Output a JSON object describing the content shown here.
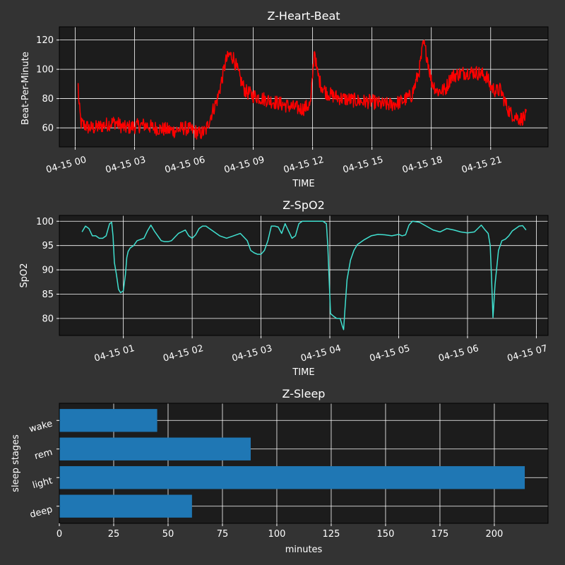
{
  "colors": {
    "figure_bg": "#333333",
    "axes_bg": "#1c1c1c",
    "text": "#ffffff",
    "grid": "#ffffff",
    "heart_line": "#ff0000",
    "spo2_line": "#40e0d0",
    "bar": "#1f77b4"
  },
  "chart_data": [
    {
      "type": "line",
      "title": "Z-Heart-Beat",
      "xlabel": "TIME",
      "ylabel": "Beat-Per-Minute",
      "x_unit": "hours from 04-15 00:00",
      "xlim": [
        -0.8,
        23.9
      ],
      "ylim": [
        47,
        129
      ],
      "xticks": [
        0,
        3,
        6,
        9,
        12,
        15,
        18,
        21
      ],
      "xtick_labels": [
        "04-15 00",
        "04-15 03",
        "04-15 06",
        "04-15 09",
        "04-15 12",
        "04-15 15",
        "04-15 18",
        "04-15 21"
      ],
      "yticks": [
        60,
        80,
        100,
        120
      ],
      "ytick_labels": [
        "60",
        "80",
        "100",
        "120"
      ],
      "grid": true,
      "series": [
        {
          "name": "heart rate",
          "noise": 5,
          "x": [
            0.15,
            0.2,
            0.3,
            0.45,
            0.7,
            1.0,
            1.5,
            2.0,
            2.5,
            3.0,
            3.5,
            4.0,
            4.5,
            5.0,
            5.5,
            6.0,
            6.3,
            6.6,
            6.9,
            7.2,
            7.4,
            7.6,
            7.8,
            8.0,
            8.3,
            8.6,
            9.0,
            9.5,
            10.0,
            10.5,
            11.0,
            11.5,
            11.9,
            12.1,
            12.2,
            12.4,
            12.7,
            13.0,
            13.5,
            14.0,
            14.5,
            15.0,
            15.5,
            16.0,
            16.5,
            17.0,
            17.2,
            17.4,
            17.6,
            17.8,
            18.0,
            18.3,
            18.7,
            19.0,
            19.4,
            19.8,
            20.2,
            20.5,
            20.8,
            21.0,
            21.3,
            21.5,
            21.8,
            22.0,
            22.5,
            22.8
          ],
          "values": [
            89,
            75,
            63,
            62,
            60,
            60,
            62,
            64,
            60,
            61,
            62,
            60,
            59,
            58,
            60,
            58,
            56,
            58,
            70,
            80,
            92,
            105,
            110,
            108,
            95,
            85,
            82,
            80,
            78,
            76,
            74,
            73,
            76,
            115,
            100,
            90,
            84,
            82,
            80,
            79,
            78,
            78,
            76,
            76,
            78,
            82,
            90,
            100,
            118,
            108,
            92,
            85,
            86,
            95,
            97,
            98,
            98,
            97,
            95,
            88,
            85,
            86,
            75,
            70,
            66,
            68
          ]
        }
      ]
    },
    {
      "type": "line",
      "title": "Z-SpO2",
      "xlabel": "TIME",
      "ylabel": "SpO2",
      "x_unit": "hours from 04-15 00:00",
      "xlim": [
        0.07,
        7.17
      ],
      "ylim": [
        76.5,
        101.2
      ],
      "xticks": [
        1,
        2,
        3,
        4,
        5,
        6,
        7
      ],
      "xtick_labels": [
        "04-15 01",
        "04-15 02",
        "04-15 03",
        "04-15 04",
        "04-15 05",
        "04-15 06",
        "04-15 07"
      ],
      "yticks": [
        80,
        85,
        90,
        95,
        100
      ],
      "ytick_labels": [
        "80",
        "85",
        "90",
        "95",
        "100"
      ],
      "grid": true,
      "series": [
        {
          "name": "SpO2",
          "x": [
            0.4,
            0.45,
            0.5,
            0.55,
            0.6,
            0.65,
            0.7,
            0.75,
            0.8,
            0.83,
            0.85,
            0.87,
            0.9,
            0.93,
            0.96,
            1.0,
            1.03,
            1.05,
            1.07,
            1.1,
            1.15,
            1.2,
            1.3,
            1.35,
            1.4,
            1.45,
            1.5,
            1.55,
            1.6,
            1.65,
            1.7,
            1.8,
            1.9,
            1.95,
            2.0,
            2.05,
            2.1,
            2.15,
            2.2,
            2.25,
            2.3,
            2.4,
            2.5,
            2.6,
            2.7,
            2.8,
            2.85,
            2.9,
            2.95,
            3.0,
            3.05,
            3.1,
            3.15,
            3.2,
            3.25,
            3.3,
            3.35,
            3.4,
            3.45,
            3.5,
            3.55,
            3.6,
            3.65,
            3.7,
            3.8,
            3.9,
            3.95,
            3.97,
            3.99,
            4.01,
            4.05,
            4.1,
            4.15,
            4.18,
            4.2,
            4.22,
            4.25,
            4.3,
            4.35,
            4.4,
            4.5,
            4.6,
            4.7,
            4.8,
            4.9,
            5.0,
            5.05,
            5.1,
            5.15,
            5.2,
            5.3,
            5.4,
            5.5,
            5.6,
            5.7,
            5.8,
            5.9,
            6.0,
            6.1,
            6.2,
            6.25,
            6.3,
            6.33,
            6.35,
            6.37,
            6.4,
            6.45,
            6.5,
            6.55,
            6.6,
            6.65,
            6.7,
            6.75,
            6.8,
            6.85
          ],
          "values": [
            97.8,
            99.0,
            98.5,
            97.0,
            97.0,
            96.5,
            96.5,
            97.0,
            99.5,
            99.8,
            97.0,
            91.5,
            89.0,
            86.0,
            85.3,
            85.7,
            89.0,
            92.5,
            93.8,
            94.5,
            95.0,
            96.0,
            96.5,
            98.0,
            99.2,
            98.0,
            97.0,
            96.0,
            95.8,
            95.8,
            96.0,
            97.5,
            98.2,
            97.0,
            96.5,
            97.2,
            98.5,
            99.0,
            99.0,
            98.5,
            98.0,
            97.0,
            96.5,
            97.0,
            97.5,
            96.0,
            94.0,
            93.5,
            93.2,
            93.2,
            94.0,
            96.0,
            99.0,
            99.0,
            98.8,
            97.5,
            99.5,
            98.0,
            96.5,
            97.0,
            99.5,
            100.0,
            100.0,
            100.0,
            100.0,
            100.0,
            99.5,
            95.0,
            88.0,
            81.0,
            80.5,
            80.0,
            80.0,
            78.5,
            77.7,
            82.0,
            88.0,
            92.0,
            94.0,
            95.2,
            96.2,
            97.0,
            97.3,
            97.2,
            97.0,
            97.3,
            97.0,
            97.2,
            99.2,
            100.0,
            99.8,
            99.0,
            98.2,
            97.8,
            98.5,
            98.2,
            97.8,
            97.6,
            97.8,
            99.2,
            98.3,
            97.5,
            95.0,
            88.0,
            80.2,
            87.0,
            94.0,
            96.0,
            96.3,
            97.0,
            98.0,
            98.5,
            99.0,
            99.1,
            98.2
          ]
        }
      ]
    },
    {
      "type": "bar",
      "orientation": "horizontal",
      "title": "Z-Sleep",
      "xlabel": "minutes",
      "ylabel": "sleep stages",
      "categories": [
        "deep",
        "light",
        "rem",
        "wake"
      ],
      "values": [
        61,
        214,
        88,
        45
      ],
      "xlim": [
        0,
        224.7
      ],
      "xticks": [
        0,
        25,
        50,
        75,
        100,
        125,
        150,
        175,
        200
      ],
      "xtick_labels": [
        "0",
        "25",
        "50",
        "75",
        "100",
        "125",
        "150",
        "175",
        "200"
      ],
      "grid": true
    }
  ]
}
